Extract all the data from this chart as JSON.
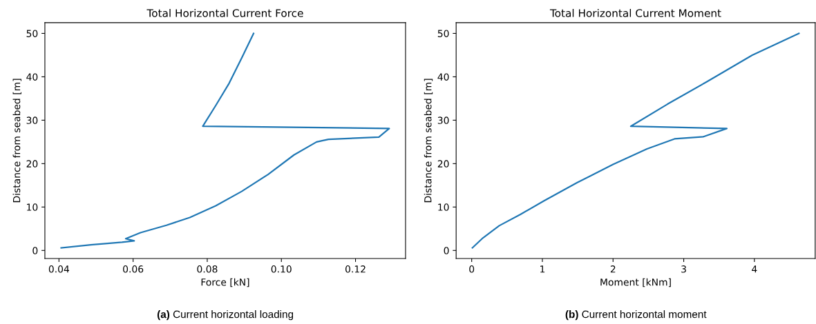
{
  "chart_data": [
    {
      "type": "line",
      "title": "Total Horizontal Current Force",
      "xlabel": "Force [kN]",
      "ylabel": "Distance from seabed [m]",
      "x": [
        0.0406,
        0.0486,
        0.057,
        0.0603,
        0.058,
        0.062,
        0.069,
        0.0753,
        0.0823,
        0.0893,
        0.0964,
        0.1034,
        0.1095,
        0.1127,
        0.1263,
        0.1291,
        0.0788,
        0.0823,
        0.0859,
        0.0894,
        0.0925
      ],
      "series": [
        {
          "color": "#1f77b4",
          "values": [
            0.6,
            1.3,
            1.9,
            2.2,
            2.7,
            4.1,
            5.8,
            7.6,
            10.3,
            13.6,
            17.5,
            22.0,
            25.0,
            25.6,
            26.1,
            28.1,
            28.6,
            33.4,
            38.5,
            44.5,
            50.0
          ]
        }
      ],
      "xlim": [
        0.0362,
        0.1335
      ],
      "xticks": [
        {
          "value": 0.04,
          "label": "0.04"
        },
        {
          "value": 0.06,
          "label": "0.06"
        },
        {
          "value": 0.08,
          "label": "0.08"
        },
        {
          "value": 0.1,
          "label": "0.10"
        },
        {
          "value": 0.12,
          "label": "0.12"
        }
      ],
      "ylim": [
        -1.87,
        52.47
      ],
      "yticks": [
        0,
        10,
        20,
        30,
        40,
        50
      ],
      "grid": false,
      "legend": false,
      "annotations": [
        "(a) Current horizontal loading"
      ]
    },
    {
      "type": "line",
      "title": "Total Horizontal Current Moment",
      "xlabel": "Moment [kNm]",
      "ylabel": "Distance from seabed [m]",
      "x": [
        0.01,
        0.16,
        0.39,
        0.69,
        1.02,
        1.49,
        2.0,
        2.48,
        2.87,
        3.28,
        3.61,
        2.25,
        2.77,
        3.32,
        3.97,
        4.63
      ],
      "series": [
        {
          "color": "#1f77b4",
          "values": [
            0.6,
            2.9,
            5.7,
            8.3,
            11.4,
            15.6,
            19.8,
            23.4,
            25.7,
            26.2,
            28.1,
            28.6,
            33.7,
            38.8,
            45.0,
            50.0
          ]
        }
      ],
      "xlim": [
        -0.22,
        4.86
      ],
      "xticks": [
        0,
        1,
        2,
        3,
        4
      ],
      "ylim": [
        -1.87,
        52.47
      ],
      "yticks": [
        0,
        10,
        20,
        30,
        40,
        50
      ],
      "grid": false,
      "legend": false,
      "annotations": [
        "(b) Current horizontal moment"
      ]
    }
  ]
}
